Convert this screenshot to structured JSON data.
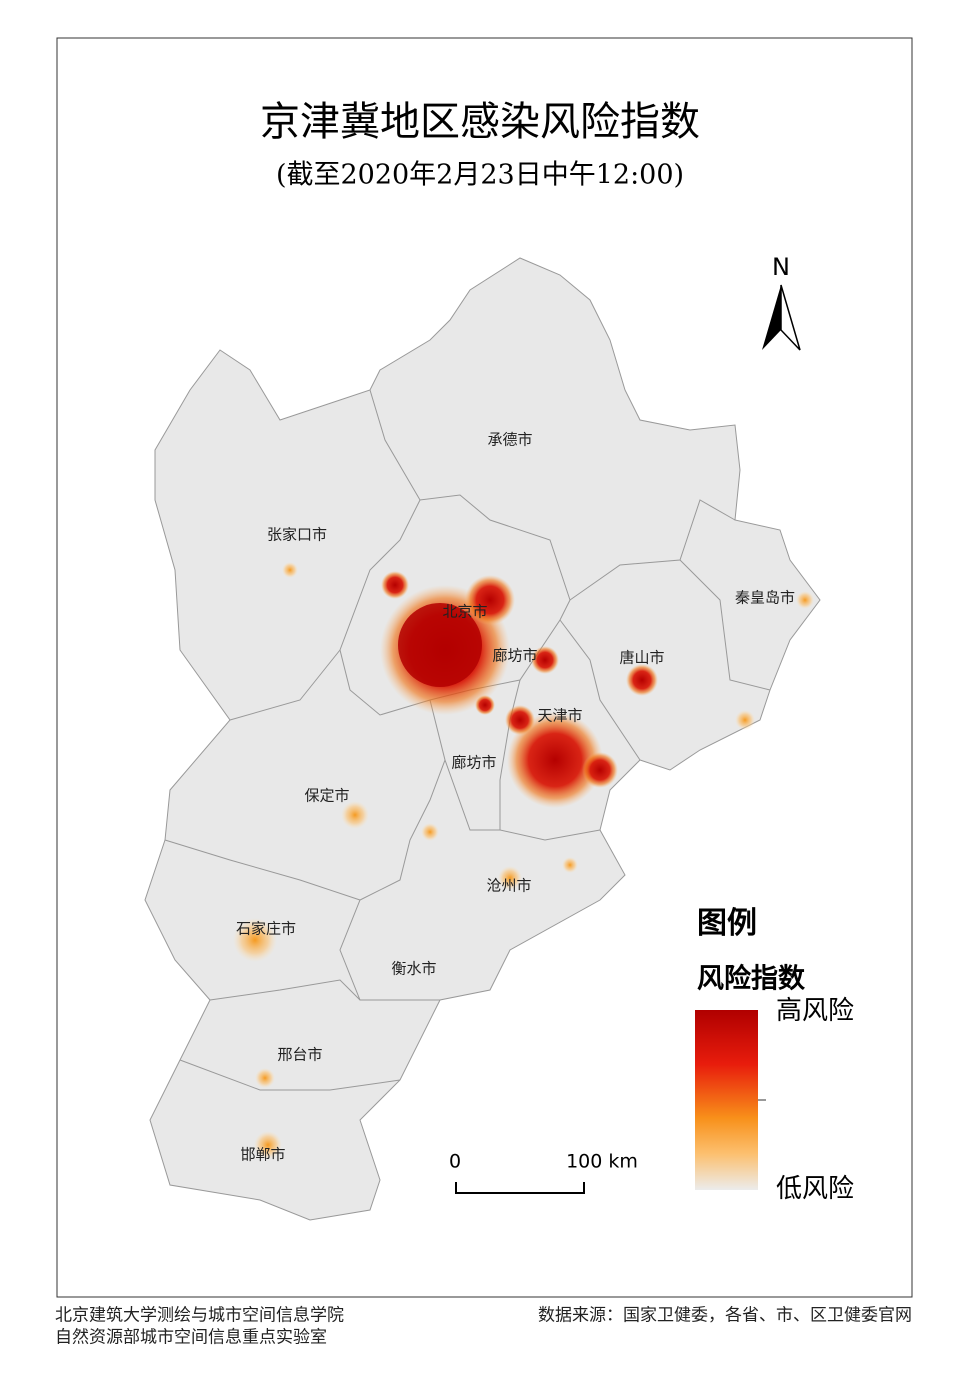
{
  "title": "京津冀地区感染风险指数",
  "subtitle": "(截至2020年2月23日中午12:00)",
  "cities": [
    {
      "label": "承德市"
    },
    {
      "label": "张家口市"
    },
    {
      "label": "北京市"
    },
    {
      "label": "廊坊市"
    },
    {
      "label": "唐山市"
    },
    {
      "label": "秦皇岛市"
    },
    {
      "label": "天津市"
    },
    {
      "label": "廊坊市"
    },
    {
      "label": "保定市"
    },
    {
      "label": "沧州市"
    },
    {
      "label": "石家庄市"
    },
    {
      "label": "衡水市"
    },
    {
      "label": "邢台市"
    },
    {
      "label": "邯郸市"
    }
  ],
  "north": "N",
  "scale": {
    "start": "0",
    "end": "100 km"
  },
  "legend": {
    "title": "图例",
    "subtitle": "风险指数",
    "high": "高风险",
    "low": "低风险"
  },
  "footer": {
    "left": [
      "北京建筑大学测绘与城市空间信息学院",
      "自然资源部城市空间信息重点实验室"
    ],
    "right": "数据来源：国家卫健委，各省、市、区卫健委官网"
  }
}
